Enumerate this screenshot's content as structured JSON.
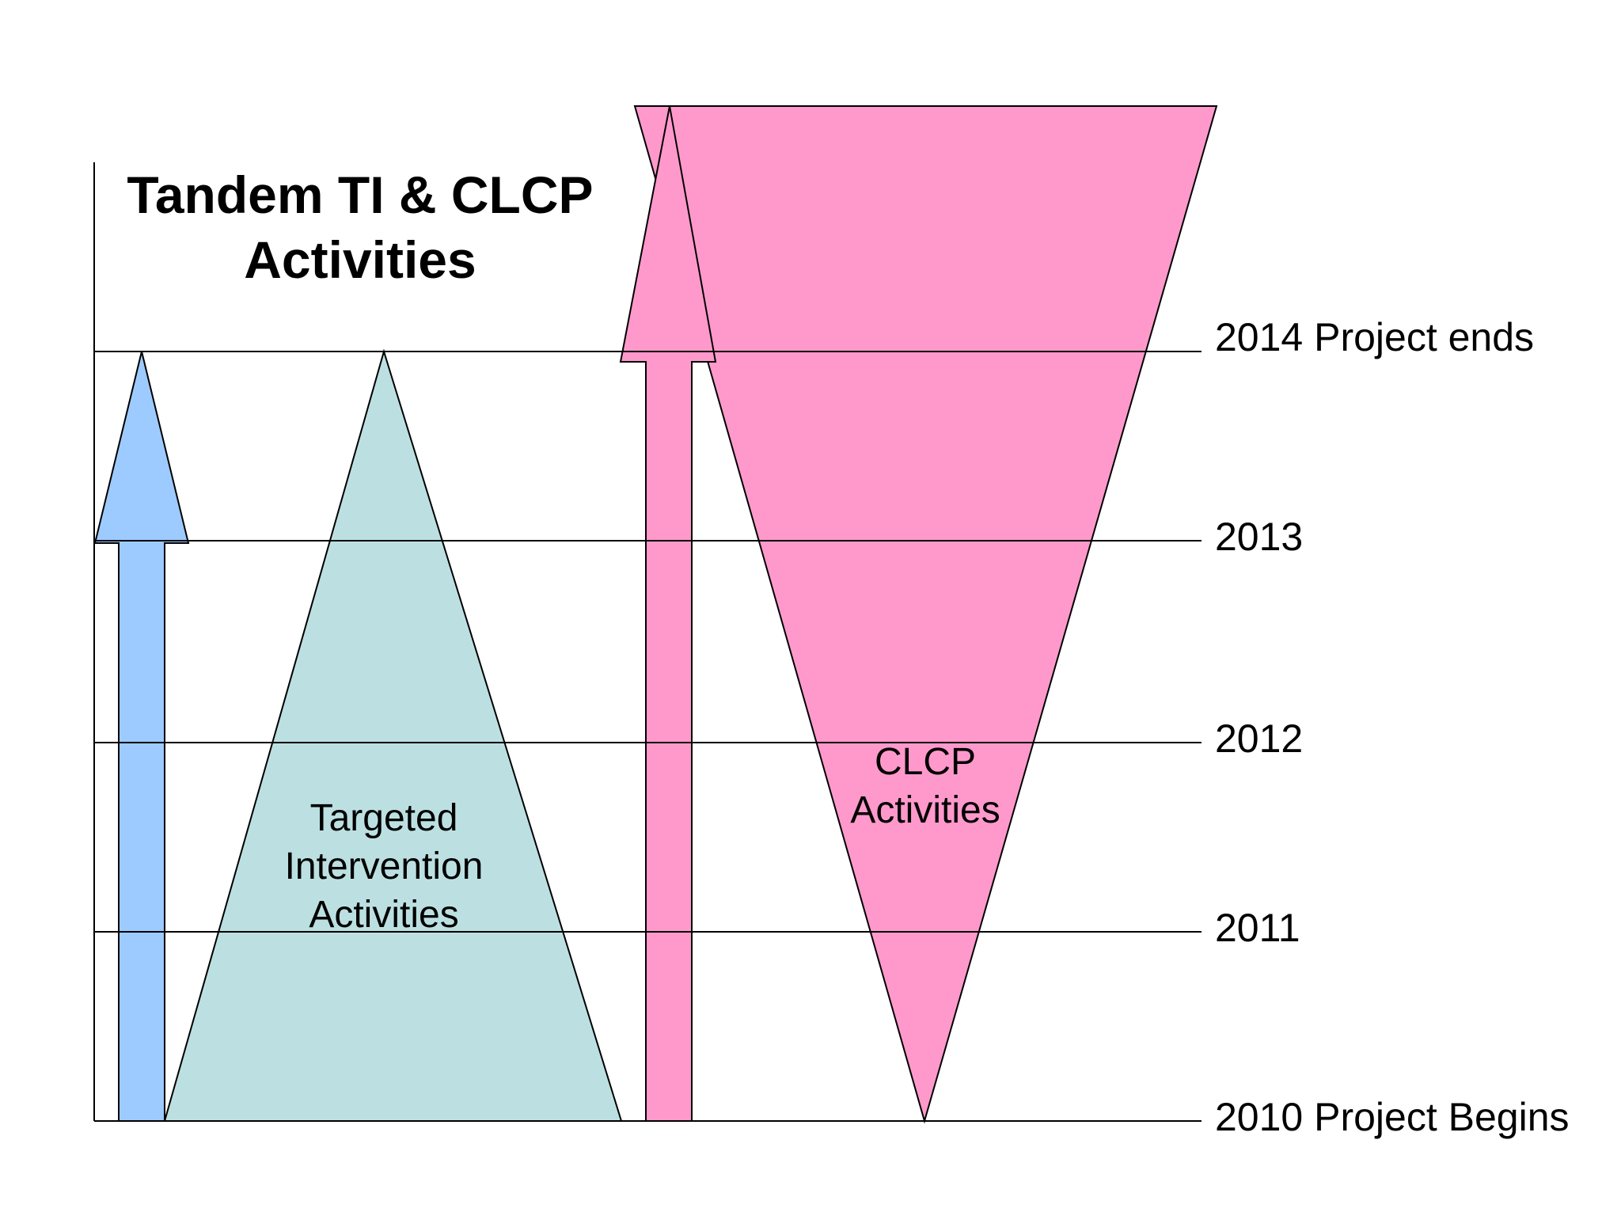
{
  "title": {
    "line1": "Tandem TI & CLCP",
    "line2": "Activities"
  },
  "timeline": [
    {
      "year": "2014 Project ends"
    },
    {
      "year": "2013"
    },
    {
      "year": "2012"
    },
    {
      "year": "2011"
    },
    {
      "year": "2010 Project Begins"
    }
  ],
  "shapes": {
    "ti": {
      "line1": "Targeted",
      "line2": "Intervention",
      "line3": "Activities"
    },
    "clcp": {
      "line1": "CLCP",
      "line2": "Activities"
    }
  },
  "colors": {
    "ti_arrow": "#9dcbff",
    "ti_triangle": "#bce0e2",
    "clcp": "#ff99cc",
    "lines": "#000000"
  }
}
